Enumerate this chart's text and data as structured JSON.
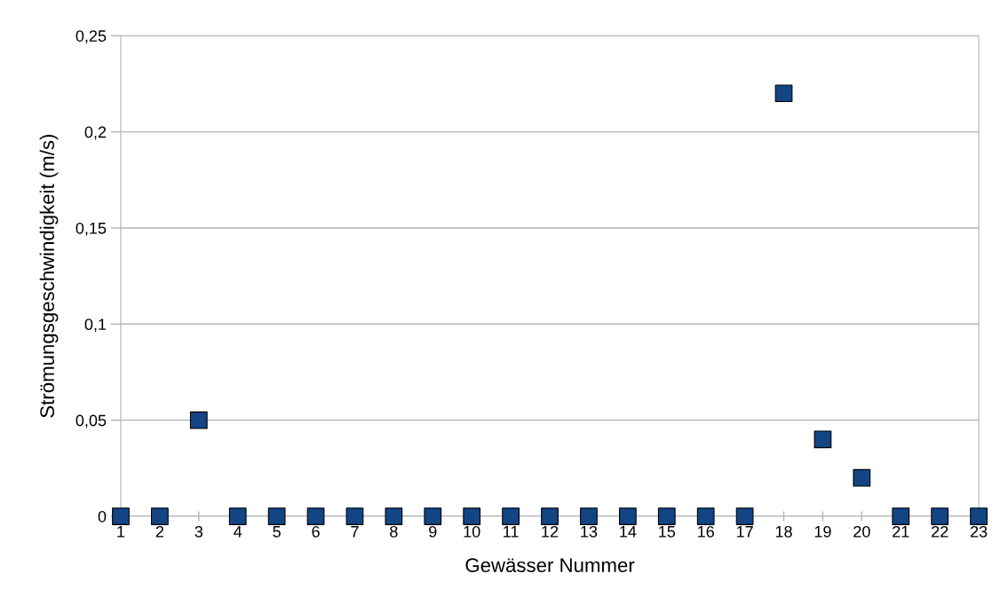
{
  "chart_data": {
    "type": "scatter",
    "xlabel": "Gewässer Nummer",
    "ylabel": "Strömungsgeschwindigkeit (m/s)",
    "x": [
      1,
      2,
      3,
      4,
      5,
      6,
      7,
      8,
      9,
      10,
      11,
      12,
      13,
      14,
      15,
      16,
      17,
      18,
      19,
      20,
      21,
      22,
      23
    ],
    "series": [
      {
        "color": "#134585",
        "values": [
          0,
          0,
          0.05,
          0,
          0,
          0,
          0,
          0,
          0,
          0,
          0,
          0,
          0,
          0,
          0,
          0,
          0,
          0.22,
          0.04,
          0.02,
          0,
          0,
          0
        ]
      }
    ],
    "xlim": [
      1,
      23
    ],
    "xticks": [
      1,
      2,
      3,
      4,
      5,
      6,
      7,
      8,
      9,
      10,
      11,
      12,
      13,
      14,
      15,
      16,
      17,
      18,
      19,
      20,
      21,
      22,
      23
    ],
    "ylim": [
      0,
      0.25
    ],
    "yticks": [
      {
        "value": 0,
        "label": "0"
      },
      {
        "value": 0.05,
        "label": "0,05"
      },
      {
        "value": 0.1,
        "label": "0,1"
      },
      {
        "value": 0.15,
        "label": "0,15"
      },
      {
        "value": 0.2,
        "label": "0,2"
      },
      {
        "value": 0.25,
        "label": "0,25"
      }
    ],
    "grid": "y",
    "marker": "square",
    "legend": false
  }
}
